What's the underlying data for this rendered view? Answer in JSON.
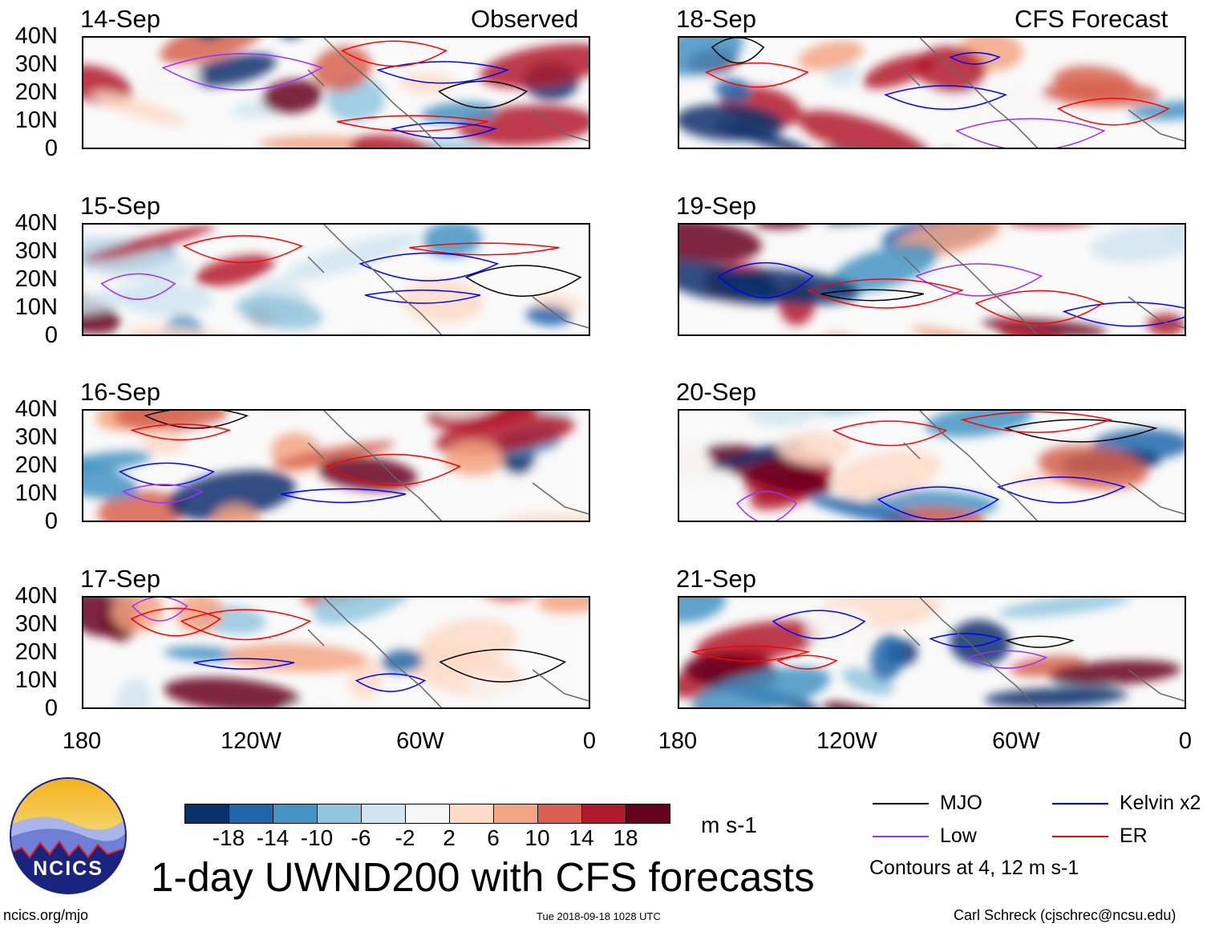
{
  "title": "1-day UWND200 with CFS forecasts",
  "observed_label": "Observed",
  "forecast_label": "CFS Forecast",
  "panels_observed": [
    "14-Sep",
    "15-Sep",
    "16-Sep",
    "17-Sep"
  ],
  "panels_forecast": [
    "18-Sep",
    "19-Sep",
    "20-Sep",
    "21-Sep"
  ],
  "y_ticks": [
    "40N",
    "30N",
    "20N",
    "10N",
    "0"
  ],
  "x_ticks": [
    "180",
    "120W",
    "60W",
    "0"
  ],
  "colorbar": {
    "labels": [
      "-18",
      "-14",
      "-10",
      "-6",
      "-2",
      "2",
      "6",
      "10",
      "14",
      "18"
    ],
    "colors": [
      "#08306b",
      "#2166ac",
      "#4393c3",
      "#92c5de",
      "#d1e5f0",
      "#f7f7f7",
      "#fddbc7",
      "#f4a582",
      "#d6604d",
      "#b2182b",
      "#67001f"
    ],
    "units": "m s-1"
  },
  "legend": {
    "items": [
      {
        "label": "MJO",
        "color": "#000000"
      },
      {
        "label": "Kelvin x2",
        "color": "#0000ff"
      },
      {
        "label": "Low",
        "color": "#9b30ff"
      },
      {
        "label": "ER",
        "color": "#ff0000"
      }
    ],
    "note": "Contours at 4, 12 m s-1"
  },
  "logo_text": "NCICS",
  "footer": {
    "left": "ncics.org/mjo",
    "center": "Tue 2018-09-18 1028 UTC",
    "right": "Carl Schreck (cjschrec@ncsu.edu)"
  }
}
